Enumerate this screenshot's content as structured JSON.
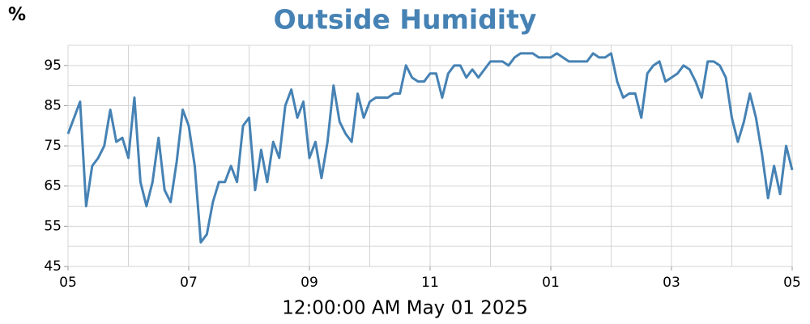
{
  "chart_data": {
    "type": "line",
    "title": "Outside Humidity",
    "y_unit": "%",
    "xlabel": "12:00:00 AM May 01 2025",
    "color": "#4682b4",
    "grid": true,
    "xlim": [
      17,
      29
    ],
    "xticks": [
      {
        "value": 17,
        "label": "05"
      },
      {
        "value": 19,
        "label": "07"
      },
      {
        "value": 21,
        "label": "09"
      },
      {
        "value": 23,
        "label": "11"
      },
      {
        "value": 25,
        "label": "01"
      },
      {
        "value": 27,
        "label": "03"
      },
      {
        "value": 29,
        "label": "05"
      }
    ],
    "minor_xticks": [
      18,
      20,
      22,
      24,
      26,
      28
    ],
    "ylim": [
      45,
      100
    ],
    "yticks": [
      45,
      55,
      65,
      75,
      85,
      95
    ],
    "minor_yticks": [
      50,
      60,
      70,
      80,
      90,
      100
    ],
    "x": [
      17,
      17.1,
      17.2,
      17.3,
      17.4,
      17.5,
      17.6,
      17.7,
      17.8,
      17.9,
      18,
      18.1,
      18.2,
      18.3,
      18.4,
      18.5,
      18.6,
      18.7,
      18.8,
      18.9,
      19,
      19.1,
      19.2,
      19.3,
      19.4,
      19.5,
      19.6,
      19.7,
      19.8,
      19.9,
      20,
      20.1,
      20.2,
      20.3,
      20.4,
      20.5,
      20.6,
      20.7,
      20.8,
      20.9,
      21,
      21.1,
      21.2,
      21.3,
      21.4,
      21.5,
      21.6,
      21.7,
      21.8,
      21.9,
      22,
      22.1,
      22.2,
      22.3,
      22.4,
      22.5,
      22.6,
      22.7,
      22.8,
      22.9,
      23,
      23.1,
      23.2,
      23.3,
      23.4,
      23.5,
      23.6,
      23.7,
      23.8,
      23.9,
      24,
      24.1,
      24.2,
      24.3,
      24.4,
      24.5,
      24.6,
      24.7,
      24.8,
      24.9,
      25,
      25.1,
      25.2,
      25.3,
      25.4,
      25.5,
      25.6,
      25.7,
      25.8,
      25.9,
      26,
      26.1,
      26.2,
      26.3,
      26.4,
      26.5,
      26.6,
      26.7,
      26.8,
      26.9,
      27,
      27.1,
      27.2,
      27.3,
      27.4,
      27.5,
      27.6,
      27.7,
      27.8,
      27.9,
      28,
      28.1,
      28.2,
      28.3,
      28.4,
      28.5,
      28.6,
      28.7,
      28.8,
      28.9,
      29
    ],
    "values": [
      78,
      82,
      86,
      60,
      70,
      72,
      75,
      84,
      76,
      77,
      72,
      87,
      66,
      60,
      66,
      77,
      64,
      61,
      71,
      84,
      80,
      70,
      51,
      53,
      61,
      66,
      66,
      70,
      66,
      80,
      82,
      64,
      74,
      66,
      76,
      72,
      85,
      89,
      82,
      86,
      72,
      76,
      67,
      76,
      90,
      81,
      78,
      76,
      88,
      82,
      86,
      87,
      87,
      87,
      88,
      88,
      95,
      92,
      91,
      91,
      93,
      93,
      87,
      93,
      95,
      95,
      92,
      94,
      92,
      94,
      96,
      96,
      96,
      95,
      97,
      98,
      98,
      98,
      97,
      97,
      97,
      98,
      97,
      96,
      96,
      96,
      96,
      98,
      97,
      97,
      98,
      91,
      87,
      88,
      88,
      82,
      93,
      95,
      96,
      91,
      92,
      93,
      95,
      94,
      91,
      87,
      96,
      96,
      95,
      92,
      82,
      76,
      81,
      88,
      82,
      73,
      62,
      70,
      63,
      75,
      69
    ]
  }
}
